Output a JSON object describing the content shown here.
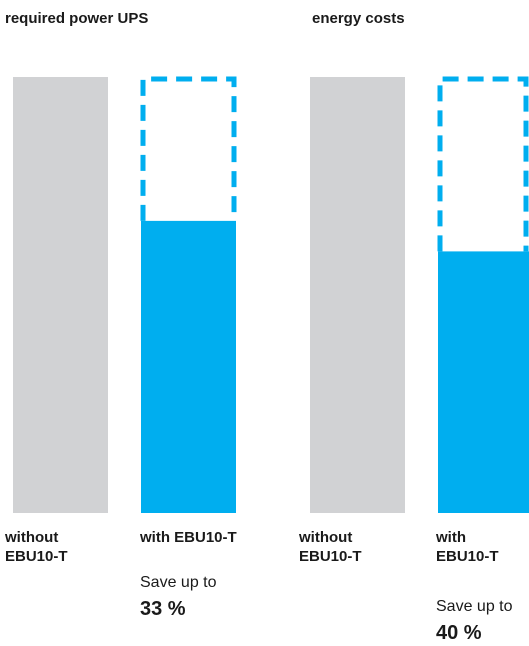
{
  "colors": {
    "without": "#d1d2d4",
    "with": "#00aeef",
    "outline": "#00aeef"
  },
  "chart_data": [
    {
      "type": "bar",
      "title": "required power UPS",
      "categories": [
        "without\nEBU10-T",
        "with EBU10-T"
      ],
      "values": [
        100,
        67
      ],
      "ylim": [
        0,
        100
      ],
      "grid": false,
      "annotation": {
        "text": "Save up to",
        "value": "33 %"
      }
    },
    {
      "type": "bar",
      "title": "energy costs",
      "categories": [
        "without\nEBU10-T",
        "with\nEBU10-T"
      ],
      "values": [
        100,
        60
      ],
      "ylim": [
        0,
        100
      ],
      "grid": false,
      "annotation": {
        "text": "Save up to",
        "value": "40 %"
      }
    }
  ]
}
